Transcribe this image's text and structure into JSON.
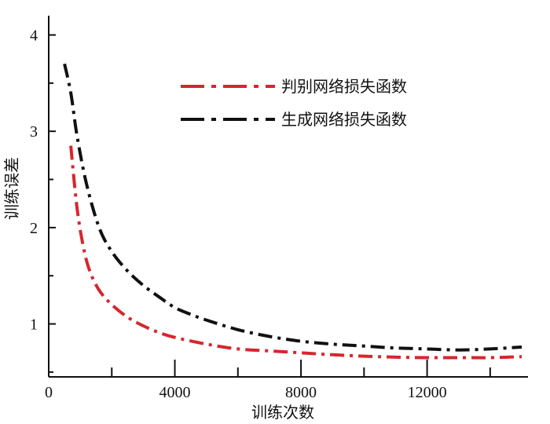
{
  "chart_data": {
    "type": "line",
    "title": "",
    "xlabel": "训练次数",
    "ylabel": "训练误差",
    "xlim": [
      0,
      15200
    ],
    "ylim": [
      0.45,
      4.2
    ],
    "x_ticks": [
      0,
      4000,
      8000,
      12000
    ],
    "x_tick_labels": [
      "0",
      "4000",
      "8000",
      "12000"
    ],
    "y_ticks": [
      1,
      2,
      3,
      4
    ],
    "y_tick_labels": [
      "1",
      "2",
      "3",
      "4"
    ],
    "grid": false,
    "legend_position": "top-right",
    "series": [
      {
        "name": "判别网络损失函数",
        "color": "#d7262e",
        "dash": "dash-dot",
        "x": [
          700,
          900,
          1100,
          1300,
          1600,
          2000,
          2500,
          3000,
          3500,
          4000,
          5000,
          6000,
          7000,
          8000,
          9000,
          10000,
          11000,
          12000,
          13000,
          14000,
          15000
        ],
        "y": [
          2.85,
          2.2,
          1.8,
          1.55,
          1.35,
          1.2,
          1.07,
          0.98,
          0.91,
          0.86,
          0.79,
          0.74,
          0.72,
          0.7,
          0.68,
          0.665,
          0.655,
          0.65,
          0.65,
          0.65,
          0.66
        ]
      },
      {
        "name": "生成网络损失函数",
        "color": "#111111",
        "dash": "dash-dot",
        "x": [
          500,
          700,
          900,
          1200,
          1600,
          2000,
          2500,
          3000,
          3500,
          4000,
          4500,
          5000,
          6000,
          7000,
          8000,
          9000,
          10000,
          11000,
          12000,
          13000,
          14000,
          15000
        ],
        "y": [
          3.7,
          3.4,
          2.95,
          2.45,
          2.0,
          1.75,
          1.55,
          1.4,
          1.28,
          1.17,
          1.1,
          1.04,
          0.94,
          0.87,
          0.82,
          0.79,
          0.77,
          0.75,
          0.74,
          0.73,
          0.74,
          0.76
        ]
      }
    ]
  }
}
